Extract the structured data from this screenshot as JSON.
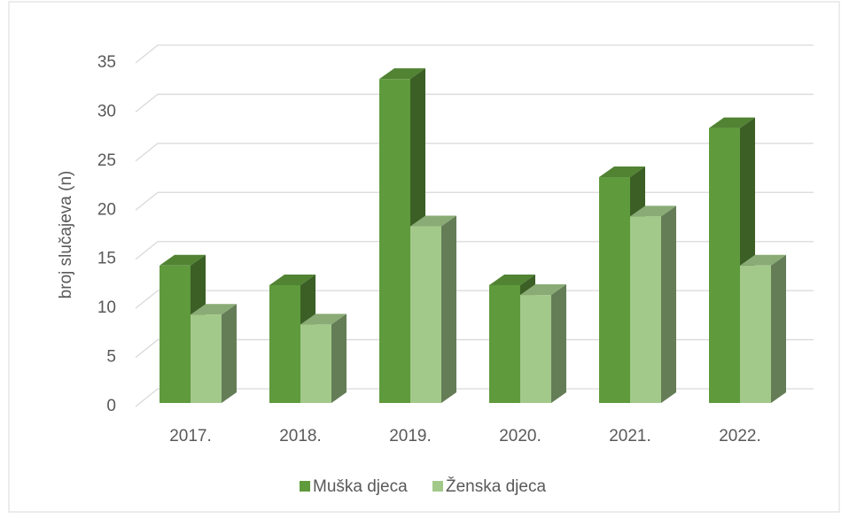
{
  "chart_data": {
    "type": "bar3d",
    "y_label": "broj slučajeva (n)",
    "categories": [
      "2017.",
      "2018.",
      "2019.",
      "2020.",
      "2021.",
      "2022."
    ],
    "series": [
      {
        "name": "Muška djeca",
        "color": "#5f9a3c",
        "values": [
          14,
          12,
          33,
          12,
          23,
          28
        ]
      },
      {
        "name": "Ženska djeca",
        "color": "#a2c98a",
        "values": [
          9,
          8,
          18,
          11,
          19,
          14
        ]
      }
    ],
    "ylim": [
      0,
      35
    ],
    "yticks": [
      0,
      5,
      10,
      15,
      20,
      25,
      30,
      35
    ],
    "grid": true,
    "legend": "bottom"
  }
}
